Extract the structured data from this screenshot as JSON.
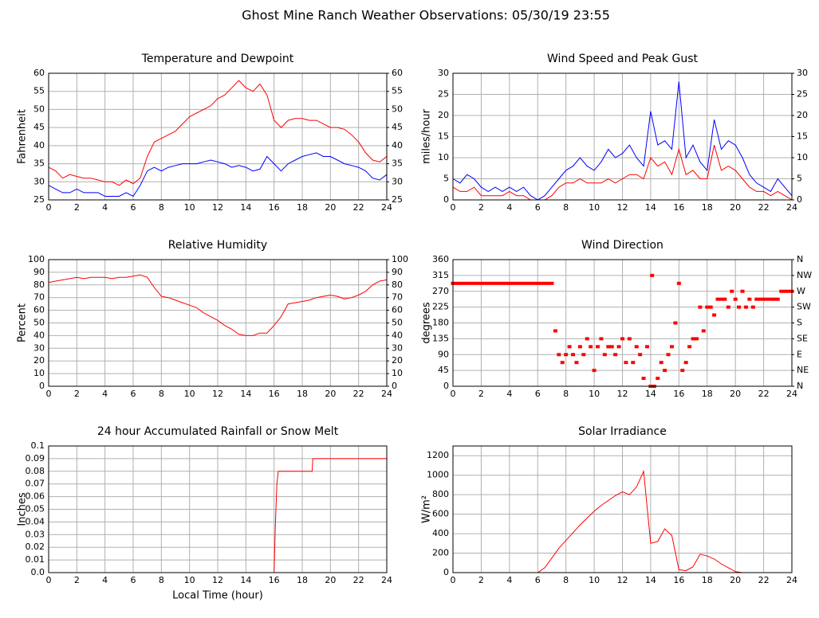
{
  "title": "Ghost Mine Ranch Weather Observations: 05/30/19 23:55",
  "chart_data": [
    {
      "type": "line",
      "title": "Temperature and Dewpoint",
      "ylabel": "Fahrenheit",
      "x": [
        0,
        0.5,
        1,
        1.5,
        2,
        2.5,
        3,
        3.5,
        4,
        4.5,
        5,
        5.5,
        6,
        6.5,
        7,
        7.5,
        8,
        8.5,
        9,
        9.5,
        10,
        10.5,
        11,
        11.5,
        12,
        12.5,
        13,
        13.5,
        14,
        14.5,
        15,
        15.5,
        16,
        16.5,
        17,
        17.5,
        18,
        18.5,
        19,
        19.5,
        20,
        20.5,
        21,
        21.5,
        22,
        22.5,
        23,
        23.5,
        24
      ],
      "series": [
        {
          "color": "#ff0000",
          "values": [
            34,
            33,
            31,
            32,
            31.5,
            31,
            31,
            30.5,
            30,
            30,
            29,
            30.5,
            29.5,
            31,
            37,
            41,
            42,
            43,
            44,
            46,
            48,
            49,
            50,
            51,
            53,
            54,
            56,
            58,
            56,
            55,
            57,
            54,
            47,
            45,
            47,
            47.5,
            47.5,
            47,
            47,
            46,
            45,
            45,
            44.5,
            43,
            41,
            38,
            36,
            35.5,
            37
          ]
        },
        {
          "color": "#0000ff",
          "values": [
            29,
            28,
            27,
            27,
            28,
            27,
            27,
            27,
            26,
            26,
            26,
            27,
            26,
            29,
            33,
            34,
            33,
            34,
            34.5,
            35,
            35,
            35,
            35.5,
            36,
            35.5,
            35,
            34,
            34.5,
            34,
            33,
            33.5,
            37,
            35,
            33,
            35,
            36,
            37,
            37.5,
            38,
            37,
            37,
            36,
            35,
            34.5,
            34,
            33,
            31,
            30.5,
            32
          ]
        }
      ],
      "xlim": [
        0,
        24
      ],
      "xticks": [
        0,
        2,
        4,
        6,
        8,
        10,
        12,
        14,
        16,
        18,
        20,
        22,
        24
      ],
      "ylim": [
        25,
        60
      ],
      "yticks": [
        25,
        30,
        35,
        40,
        45,
        50,
        55,
        60
      ],
      "y2lim": [
        25,
        60
      ],
      "y2ticks": [
        25,
        30,
        35,
        40,
        45,
        50,
        55,
        60
      ],
      "grid": true
    },
    {
      "type": "line",
      "title": "Wind Speed and Peak Gust",
      "ylabel": "miles/hour",
      "x": [
        0,
        0.5,
        1,
        1.5,
        2,
        2.5,
        3,
        3.5,
        4,
        4.5,
        5,
        5.5,
        6,
        6.5,
        7,
        7.5,
        8,
        8.5,
        9,
        9.5,
        10,
        10.5,
        11,
        11.5,
        12,
        12.5,
        13,
        13.5,
        14,
        14.5,
        15,
        15.5,
        16,
        16.5,
        17,
        17.5,
        18,
        18.5,
        19,
        19.5,
        20,
        20.5,
        21,
        21.5,
        22,
        22.5,
        23,
        23.5,
        24
      ],
      "series": [
        {
          "color": "#0000ff",
          "values": [
            5,
            4,
            6,
            5,
            3,
            2,
            3,
            2,
            3,
            2,
            3,
            1,
            0,
            1,
            3,
            5,
            7,
            8,
            10,
            8,
            7,
            9,
            12,
            10,
            11,
            13,
            10,
            8,
            21,
            13,
            14,
            12,
            28,
            10,
            13,
            9,
            7,
            19,
            12,
            14,
            13,
            10,
            6,
            4,
            3,
            2,
            5,
            3,
            1
          ]
        },
        {
          "color": "#ff0000",
          "values": [
            3,
            2,
            2,
            3,
            1,
            1,
            1,
            1,
            2,
            1,
            1,
            0,
            0,
            0,
            1,
            3,
            4,
            4,
            5,
            4,
            4,
            4,
            5,
            4,
            5,
            6,
            6,
            5,
            10,
            8,
            9,
            6,
            12,
            6,
            7,
            5,
            5,
            13,
            7,
            8,
            7,
            5,
            3,
            2,
            2,
            1,
            2,
            1,
            0
          ]
        }
      ],
      "xlim": [
        0,
        24
      ],
      "xticks": [
        0,
        2,
        4,
        6,
        8,
        10,
        12,
        14,
        16,
        18,
        20,
        22,
        24
      ],
      "ylim": [
        0,
        30
      ],
      "yticks": [
        0,
        5,
        10,
        15,
        20,
        25,
        30
      ],
      "y2lim": [
        0,
        30
      ],
      "y2ticks": [
        0,
        5,
        10,
        15,
        20,
        25,
        30
      ],
      "grid": true
    },
    {
      "type": "line",
      "title": "Relative Humidity",
      "ylabel": "Percent",
      "x": [
        0,
        0.5,
        1,
        1.5,
        2,
        2.5,
        3,
        3.5,
        4,
        4.5,
        5,
        5.5,
        6,
        6.5,
        7,
        7.5,
        8,
        8.5,
        9,
        9.5,
        10,
        10.5,
        11,
        11.5,
        12,
        12.5,
        13,
        13.5,
        14,
        14.5,
        15,
        15.5,
        16,
        16.5,
        17,
        17.5,
        18,
        18.5,
        19,
        19.5,
        20,
        20.5,
        21,
        21.5,
        22,
        22.5,
        23,
        23.5,
        24
      ],
      "series": [
        {
          "color": "#ff0000",
          "values": [
            82,
            83,
            84,
            85,
            86,
            85,
            86,
            86,
            86,
            85,
            86,
            86,
            87,
            88,
            86,
            78,
            71,
            70,
            68,
            66,
            64,
            62,
            58,
            55,
            52,
            48,
            45,
            41,
            40,
            40,
            42,
            42,
            48,
            55,
            65,
            66,
            67,
            68,
            70,
            71,
            72,
            71,
            69,
            70,
            72,
            75,
            80,
            83,
            84
          ]
        }
      ],
      "xlim": [
        0,
        24
      ],
      "xticks": [
        0,
        2,
        4,
        6,
        8,
        10,
        12,
        14,
        16,
        18,
        20,
        22,
        24
      ],
      "ylim": [
        0,
        100
      ],
      "yticks": [
        0,
        10,
        20,
        30,
        40,
        50,
        60,
        70,
        80,
        90,
        100
      ],
      "y2lim": [
        0,
        100
      ],
      "y2ticks": [
        0,
        10,
        20,
        30,
        40,
        50,
        60,
        70,
        80,
        90,
        100
      ],
      "grid": true
    },
    {
      "type": "scatter",
      "title": "Wind Direction",
      "ylabel": "degrees",
      "x": [
        0,
        0.25,
        0.5,
        0.75,
        1,
        1.25,
        1.5,
        1.75,
        2,
        2.25,
        2.5,
        2.75,
        3,
        3.25,
        3.5,
        3.75,
        4,
        4.25,
        4.5,
        4.75,
        5,
        5.25,
        5.5,
        5.75,
        6,
        6.25,
        6.5,
        6.75,
        7,
        7.25,
        7.5,
        7.75,
        8,
        8.25,
        8.5,
        8.75,
        9,
        9.25,
        9.5,
        9.75,
        10,
        10.25,
        10.5,
        10.75,
        11,
        11.25,
        11.5,
        11.75,
        12,
        12.25,
        12.5,
        12.75,
        13,
        13.25,
        13.5,
        13.75,
        14,
        14.1,
        14.25,
        14.5,
        14.75,
        15,
        15.25,
        15.5,
        15.75,
        16,
        16.25,
        16.5,
        16.75,
        17,
        17.25,
        17.5,
        17.75,
        18,
        18.25,
        18.5,
        18.75,
        19,
        19.25,
        19.5,
        19.75,
        20,
        20.25,
        20.5,
        20.75,
        21,
        21.25,
        21.5,
        21.75,
        22,
        22.25,
        22.5,
        22.75,
        23,
        23.25,
        23.5,
        23.75,
        24
      ],
      "series": [
        {
          "color": "#ff0000",
          "values": [
            292.5,
            292.5,
            292.5,
            292.5,
            292.5,
            292.5,
            292.5,
            292.5,
            292.5,
            292.5,
            292.5,
            292.5,
            292.5,
            292.5,
            292.5,
            292.5,
            292.5,
            292.5,
            292.5,
            292.5,
            292.5,
            292.5,
            292.5,
            292.5,
            292.5,
            292.5,
            292.5,
            292.5,
            292.5,
            157.5,
            90,
            67.5,
            90,
            112.5,
            90,
            67.5,
            112.5,
            90,
            135,
            112.5,
            45,
            112.5,
            135,
            90,
            112.5,
            112.5,
            90,
            112.5,
            135,
            67.5,
            135,
            67.5,
            112.5,
            90,
            22.5,
            112.5,
            0,
            315,
            0,
            22.5,
            67.5,
            45,
            90,
            112.5,
            180,
            292.5,
            45,
            67.5,
            112.5,
            135,
            135,
            225,
            157.5,
            225,
            225,
            202.5,
            247.5,
            247.5,
            247.5,
            225,
            270,
            247.5,
            225,
            270,
            225,
            247.5,
            225,
            247.5,
            247.5,
            247.5,
            247.5,
            247.5,
            247.5,
            247.5,
            270,
            270,
            270,
            270
          ]
        }
      ],
      "xlim": [
        0,
        24
      ],
      "xticks": [
        0,
        2,
        4,
        6,
        8,
        10,
        12,
        14,
        16,
        18,
        20,
        22,
        24
      ],
      "ylim": [
        0,
        360
      ],
      "yticks": [
        0,
        45,
        90,
        135,
        180,
        225,
        270,
        315,
        360
      ],
      "y2lim": [
        0,
        360
      ],
      "y2ticks": [
        {
          "value": 0,
          "label": "N"
        },
        {
          "value": 45,
          "label": "NE"
        },
        {
          "value": 90,
          "label": "E"
        },
        {
          "value": 135,
          "label": "SE"
        },
        {
          "value": 180,
          "label": "S"
        },
        {
          "value": 225,
          "label": "SW"
        },
        {
          "value": 270,
          "label": "W"
        },
        {
          "value": 315,
          "label": "NW"
        },
        {
          "value": 360,
          "label": "N"
        }
      ],
      "grid": true
    },
    {
      "type": "line",
      "title": "24 hour Accumulated Rainfall or Snow Melt",
      "ylabel": "Inches",
      "xlabel": "Local Time (hour)",
      "x": [
        0,
        16,
        16.1,
        16.2,
        16.3,
        18.7,
        18.75,
        24
      ],
      "series": [
        {
          "color": "#ff0000",
          "values": [
            0,
            0,
            0.04,
            0.07,
            0.08,
            0.08,
            0.09,
            0.09
          ]
        }
      ],
      "xlim": [
        0,
        24
      ],
      "xticks": [
        0,
        2,
        4,
        6,
        8,
        10,
        12,
        14,
        16,
        18,
        20,
        22,
        24
      ],
      "ylim": [
        0,
        0.1
      ],
      "yticks": [
        {
          "value": 0,
          "label": "0.0"
        },
        0.01,
        0.02,
        0.03,
        0.04,
        0.05,
        0.06,
        0.07,
        0.08,
        0.09,
        0.1
      ],
      "grid": true
    },
    {
      "type": "line",
      "title": "Solar Irradiance",
      "ylabel": "W/m²",
      "x": [
        0,
        0.5,
        1,
        1.5,
        2,
        2.5,
        3,
        3.5,
        4,
        4.5,
        5,
        5.5,
        6,
        6.5,
        7,
        7.5,
        8,
        8.5,
        9,
        9.5,
        10,
        10.5,
        11,
        11.5,
        12,
        12.5,
        13,
        13.5,
        14,
        14.5,
        15,
        15.5,
        16,
        16.5,
        17,
        17.5,
        18,
        18.5,
        19,
        19.5,
        20,
        20.5,
        21,
        21.5,
        22,
        22.5,
        23,
        23.5,
        24
      ],
      "series": [
        {
          "color": "#ff0000",
          "values": [
            0,
            0,
            0,
            0,
            0,
            0,
            0,
            0,
            0,
            0,
            0,
            0,
            0,
            50,
            150,
            250,
            330,
            410,
            490,
            560,
            630,
            690,
            740,
            790,
            830,
            800,
            880,
            1040,
            300,
            320,
            450,
            380,
            30,
            20,
            60,
            190,
            170,
            140,
            90,
            50,
            10,
            0,
            0,
            0,
            0,
            0,
            0,
            0,
            0
          ]
        }
      ],
      "xlim": [
        0,
        24
      ],
      "xticks": [
        0,
        2,
        4,
        6,
        8,
        10,
        12,
        14,
        16,
        18,
        20,
        22,
        24
      ],
      "ylim": [
        0,
        1300
      ],
      "yticks": [
        0,
        200,
        400,
        600,
        800,
        1000,
        1200
      ],
      "grid": true
    }
  ]
}
